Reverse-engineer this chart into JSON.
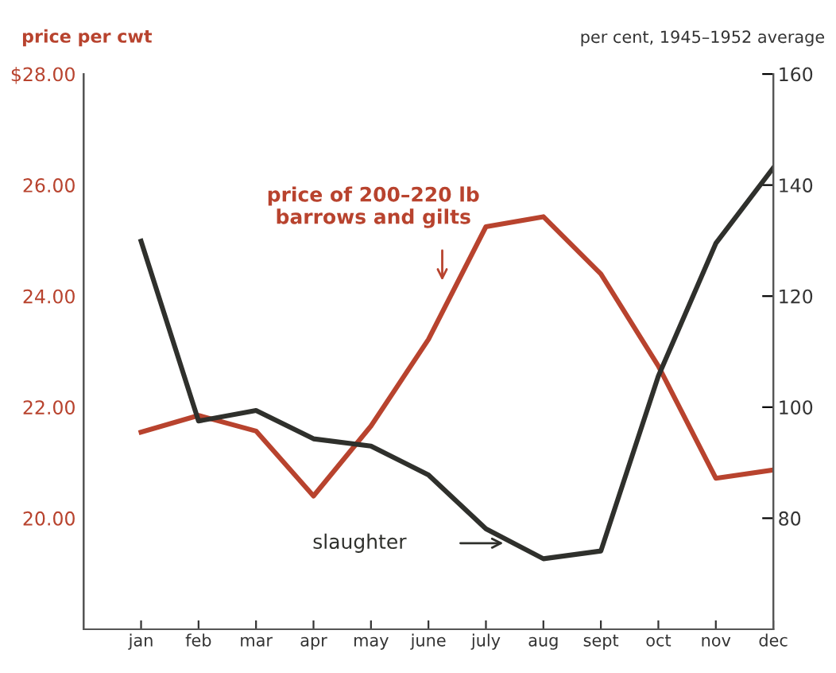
{
  "chart_data": {
    "type": "line",
    "ylabel": "price per cwt",
    "y2label": "per cent, 1945–1952 average",
    "categories": [
      "jan",
      "feb",
      "mar",
      "apr",
      "may",
      "june",
      "july",
      "aug",
      "sept",
      "oct",
      "nov",
      "dec"
    ],
    "series": [
      {
        "color": "#b8432e",
        "values": [
          21.55,
          21.85,
          21.57,
          20.4,
          21.66,
          23.22,
          25.25,
          25.43,
          24.4,
          22.74,
          20.72,
          20.87
        ]
      },
      {
        "color": "#2f302c",
        "axis": "y2",
        "values": [
          129.9,
          97.5,
          99.4,
          94.3,
          93.0,
          87.8,
          78.1,
          72.7,
          74.1,
          105.6,
          129.5,
          143.1
        ]
      }
    ],
    "ylim": [
      18,
      28
    ],
    "yticks": [
      {
        "value": 20,
        "label": "20.00"
      },
      {
        "value": 22,
        "label": "22.00"
      },
      {
        "value": 24,
        "label": "24.00"
      },
      {
        "value": 26,
        "label": "26.00"
      },
      {
        "value": 28,
        "label": "$28.00"
      }
    ],
    "y2lim": [
      60,
      160
    ],
    "y2ticks": [
      80,
      100,
      120,
      140,
      160
    ],
    "annotations": [
      "price of 200–220 lb\nbarrows and gilts",
      "slaughter"
    ],
    "grid": false,
    "legend": false,
    "marker": "none",
    "line_style": "solid"
  }
}
